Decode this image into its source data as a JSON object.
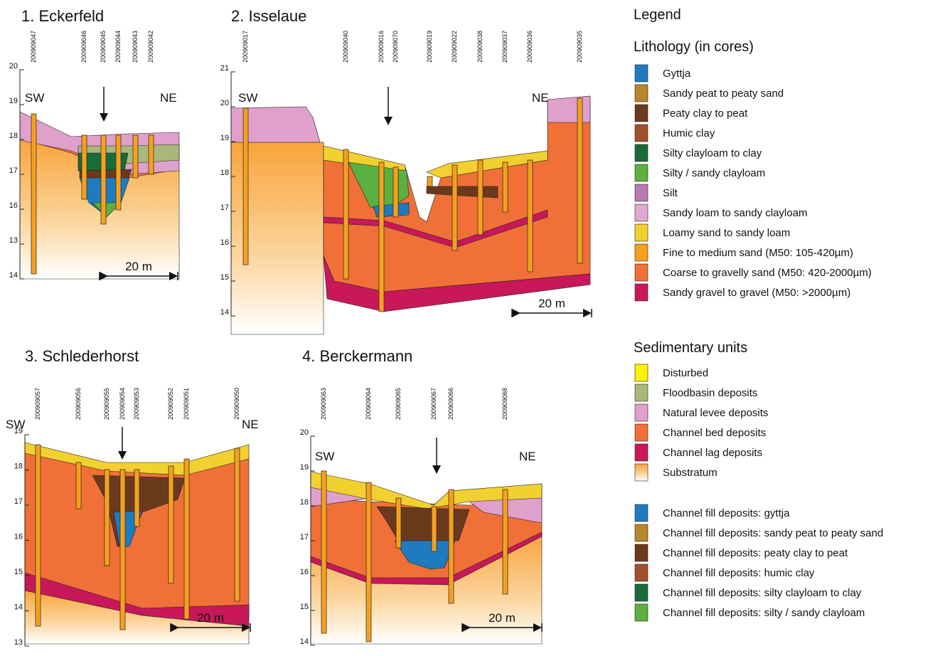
{
  "panels": [
    {
      "title": "1. Eckerfeld",
      "cores": [
        "200909047",
        "200909046",
        "200909045",
        "200909044",
        "200909043",
        "200909042"
      ],
      "elevation_labels": [
        "20",
        "19",
        "18",
        "17",
        "16",
        "13",
        "14"
      ],
      "left_label": "SW",
      "right_label": "NE",
      "scale_bar": "20 m"
    },
    {
      "title": "2. Isselaue",
      "cores": [
        "200909017",
        "200909040",
        "200909016",
        "200909070",
        "200909019",
        "200909022",
        "200909038",
        "200909037",
        "200909036",
        "200909035"
      ],
      "elevation_labels": [
        "21",
        "20",
        "19",
        "18",
        "17",
        "16",
        "15",
        "14"
      ],
      "left_label": "SW",
      "right_label": "NE",
      "scale_bar": "20 m"
    },
    {
      "title": "3. Schlederhorst",
      "cores": [
        "200909057",
        "200909056",
        "200909055",
        "200909054",
        "200909053",
        "200909052",
        "200909051",
        "200909050"
      ],
      "elevation_labels": [
        "19",
        "18",
        "17",
        "16",
        "15",
        "14",
        "13"
      ],
      "left_label": "SW",
      "right_label": "NE",
      "scale_bar": "20 m"
    },
    {
      "title": "4. Berckermann",
      "cores": [
        "200909063",
        "200909064",
        "200909065",
        "200909067",
        "200909066",
        "200909068"
      ],
      "elevation_labels": [
        "20",
        "19",
        "18",
        "17",
        "16",
        "15",
        "14"
      ],
      "left_label": "SW",
      "right_label": "NE",
      "scale_bar": "20 m"
    }
  ],
  "legend": {
    "title": "Legend",
    "lithology_title": "Lithology (in cores)",
    "lithology": [
      {
        "label": "Gyttja",
        "color": "#1f7bbf"
      },
      {
        "label": "Sandy peat to peaty sand",
        "color": "#b8862b"
      },
      {
        "label": "Peaty clay to peat",
        "color": "#6b3a1c"
      },
      {
        "label": "Humic clay",
        "color": "#a0522d"
      },
      {
        "label": "Silty clayloam to clay",
        "color": "#1a6b3a"
      },
      {
        "label": "Silty / sandy clayloam",
        "color": "#5cb040"
      },
      {
        "label": "Silt",
        "color": "#b87ab0"
      },
      {
        "label": "Sandy loam to sandy clayloam",
        "color": "#e0a8d0"
      },
      {
        "label": "Loamy sand to sandy loam",
        "color": "#f2d030"
      },
      {
        "label": "Fine to medium sand (M50: 105-420µm)",
        "color": "#f5a020"
      },
      {
        "label": "Coarse to gravelly sand (M50: 420-2000µm)",
        "color": "#f07038"
      },
      {
        "label": "Sandy gravel to gravel (M50: >2000µm)",
        "color": "#c8185a"
      }
    ],
    "units_title": "Sedimentary units",
    "units": [
      {
        "label": "Disturbed",
        "color": "#fff200"
      },
      {
        "label": "Floodbasin deposits",
        "color": "#a8b87a"
      },
      {
        "label": "Natural levee deposits",
        "color": "#e0a0cc"
      },
      {
        "label": "Channel bed deposits",
        "color": "#f07038"
      },
      {
        "label": "Channel lag deposits",
        "color": "#c8185a"
      },
      {
        "label": "Substratum",
        "color": "#f9a43a"
      }
    ],
    "channel_fill": [
      {
        "label": "Channel fill deposits: gyttja",
        "color": "#1f7bbf"
      },
      {
        "label": "Channel fill deposits: sandy peat to peaty sand",
        "color": "#b8862b"
      },
      {
        "label": "Channel fill deposits: peaty clay to peat",
        "color": "#6b3a1c"
      },
      {
        "label": "Channel fill deposits: humic clay",
        "color": "#a0522d"
      },
      {
        "label": "Channel fill deposits: silty clayloam to clay",
        "color": "#1a6b3a"
      },
      {
        "label": "Channel fill deposits: silty / sandy clayloam",
        "color": "#5cb040"
      }
    ]
  }
}
